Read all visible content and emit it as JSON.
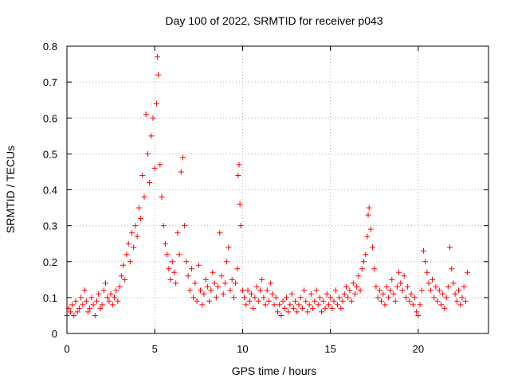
{
  "chart_data": {
    "type": "scatter",
    "title": "Day 100 of 2022, SRMTID for receiver p043",
    "xlabel": "GPS time / hours",
    "ylabel": "SRMTID / TECUs",
    "xlim": [
      0,
      24
    ],
    "ylim": [
      0,
      0.8
    ],
    "xticks": [
      0,
      5,
      10,
      15,
      20
    ],
    "xtick_labels": [
      "0",
      "5",
      "10",
      "15",
      "20"
    ],
    "yticks": [
      0,
      0.1,
      0.2,
      0.3,
      0.4,
      0.5,
      0.6,
      0.7,
      0.8
    ],
    "ytick_labels": [
      "0",
      "0.1",
      "0.2",
      "0.3",
      "0.4",
      "0.5",
      "0.6",
      "0.7",
      "0.8"
    ],
    "grid": true,
    "marker": "+",
    "series": [
      {
        "name": "SRMTID",
        "color": "#ff0000",
        "points": [
          [
            0.0,
            0.05
          ],
          [
            0.1,
            0.07
          ],
          [
            0.2,
            0.06
          ],
          [
            0.3,
            0.08
          ],
          [
            0.4,
            0.05
          ],
          [
            0.5,
            0.09
          ],
          [
            0.6,
            0.06
          ],
          [
            0.7,
            0.07
          ],
          [
            0.8,
            0.1
          ],
          [
            0.9,
            0.08
          ],
          [
            1.0,
            0.12
          ],
          [
            1.1,
            0.09
          ],
          [
            1.2,
            0.06
          ],
          [
            1.3,
            0.07
          ],
          [
            1.4,
            0.1
          ],
          [
            1.5,
            0.08
          ],
          [
            1.6,
            0.05
          ],
          [
            1.7,
            0.09
          ],
          [
            1.8,
            0.11
          ],
          [
            1.9,
            0.07
          ],
          [
            2.0,
            0.08
          ],
          [
            2.1,
            0.12
          ],
          [
            2.2,
            0.14
          ],
          [
            2.3,
            0.1
          ],
          [
            2.4,
            0.09
          ],
          [
            2.5,
            0.11
          ],
          [
            2.6,
            0.08
          ],
          [
            2.7,
            0.1
          ],
          [
            2.8,
            0.12
          ],
          [
            2.9,
            0.09
          ],
          [
            3.0,
            0.13
          ],
          [
            3.1,
            0.16
          ],
          [
            3.2,
            0.19
          ],
          [
            3.3,
            0.15
          ],
          [
            3.4,
            0.22
          ],
          [
            3.5,
            0.25
          ],
          [
            3.6,
            0.2
          ],
          [
            3.7,
            0.28
          ],
          [
            3.8,
            0.24
          ],
          [
            3.9,
            0.3
          ],
          [
            4.0,
            0.27
          ],
          [
            4.1,
            0.35
          ],
          [
            4.2,
            0.32
          ],
          [
            4.3,
            0.44
          ],
          [
            4.4,
            0.38
          ],
          [
            4.5,
            0.61
          ],
          [
            4.6,
            0.5
          ],
          [
            4.7,
            0.42
          ],
          [
            4.8,
            0.55
          ],
          [
            4.9,
            0.6
          ],
          [
            5.0,
            0.46
          ],
          [
            5.1,
            0.64
          ],
          [
            5.15,
            0.77
          ],
          [
            5.2,
            0.72
          ],
          [
            5.3,
            0.47
          ],
          [
            5.4,
            0.38
          ],
          [
            5.5,
            0.3
          ],
          [
            5.6,
            0.25
          ],
          [
            5.7,
            0.22
          ],
          [
            5.8,
            0.18
          ],
          [
            5.9,
            0.15
          ],
          [
            6.0,
            0.2
          ],
          [
            6.1,
            0.17
          ],
          [
            6.2,
            0.14
          ],
          [
            6.3,
            0.28
          ],
          [
            6.4,
            0.22
          ],
          [
            6.5,
            0.45
          ],
          [
            6.6,
            0.49
          ],
          [
            6.7,
            0.3
          ],
          [
            6.8,
            0.2
          ],
          [
            6.9,
            0.16
          ],
          [
            7.0,
            0.12
          ],
          [
            7.1,
            0.18
          ],
          [
            7.2,
            0.1
          ],
          [
            7.3,
            0.14
          ],
          [
            7.4,
            0.09
          ],
          [
            7.5,
            0.19
          ],
          [
            7.6,
            0.12
          ],
          [
            7.7,
            0.08
          ],
          [
            7.8,
            0.11
          ],
          [
            7.9,
            0.15
          ],
          [
            8.0,
            0.13
          ],
          [
            8.1,
            0.09
          ],
          [
            8.2,
            0.12
          ],
          [
            8.3,
            0.17
          ],
          [
            8.4,
            0.14
          ],
          [
            8.5,
            0.1
          ],
          [
            8.6,
            0.13
          ],
          [
            8.7,
            0.28
          ],
          [
            8.8,
            0.16
          ],
          [
            8.9,
            0.11
          ],
          [
            9.0,
            0.14
          ],
          [
            9.1,
            0.2
          ],
          [
            9.2,
            0.24
          ],
          [
            9.3,
            0.12
          ],
          [
            9.4,
            0.15
          ],
          [
            9.5,
            0.1
          ],
          [
            9.6,
            0.14
          ],
          [
            9.7,
            0.18
          ],
          [
            9.75,
            0.44
          ],
          [
            9.8,
            0.47
          ],
          [
            9.85,
            0.36
          ],
          [
            9.9,
            0.3
          ],
          [
            10.0,
            0.12
          ],
          [
            10.1,
            0.1
          ],
          [
            10.2,
            0.08
          ],
          [
            10.3,
            0.12
          ],
          [
            10.4,
            0.09
          ],
          [
            10.5,
            0.11
          ],
          [
            10.6,
            0.07
          ],
          [
            10.7,
            0.1
          ],
          [
            10.8,
            0.13
          ],
          [
            10.9,
            0.09
          ],
          [
            11.0,
            0.12
          ],
          [
            11.1,
            0.15
          ],
          [
            11.2,
            0.1
          ],
          [
            11.3,
            0.08
          ],
          [
            11.4,
            0.12
          ],
          [
            11.5,
            0.09
          ],
          [
            11.6,
            0.14
          ],
          [
            11.7,
            0.11
          ],
          [
            11.8,
            0.08
          ],
          [
            11.9,
            0.1
          ],
          [
            12.0,
            0.06
          ],
          [
            12.1,
            0.08
          ],
          [
            12.2,
            0.05
          ],
          [
            12.3,
            0.09
          ],
          [
            12.4,
            0.07
          ],
          [
            12.5,
            0.1
          ],
          [
            12.6,
            0.06
          ],
          [
            12.7,
            0.08
          ],
          [
            12.8,
            0.11
          ],
          [
            12.9,
            0.07
          ],
          [
            13.0,
            0.09
          ],
          [
            13.1,
            0.06
          ],
          [
            13.2,
            0.08
          ],
          [
            13.3,
            0.1
          ],
          [
            13.4,
            0.07
          ],
          [
            13.5,
            0.12
          ],
          [
            13.6,
            0.09
          ],
          [
            13.7,
            0.06
          ],
          [
            13.8,
            0.08
          ],
          [
            13.9,
            0.11
          ],
          [
            14.0,
            0.07
          ],
          [
            14.1,
            0.09
          ],
          [
            14.2,
            0.12
          ],
          [
            14.3,
            0.08
          ],
          [
            14.4,
            0.1
          ],
          [
            14.5,
            0.06
          ],
          [
            14.6,
            0.09
          ],
          [
            14.7,
            0.07
          ],
          [
            14.8,
            0.11
          ],
          [
            14.9,
            0.08
          ],
          [
            15.0,
            0.1
          ],
          [
            15.1,
            0.07
          ],
          [
            15.2,
            0.09
          ],
          [
            15.3,
            0.12
          ],
          [
            15.4,
            0.08
          ],
          [
            15.5,
            0.1
          ],
          [
            15.6,
            0.07
          ],
          [
            15.7,
            0.09
          ],
          [
            15.8,
            0.11
          ],
          [
            15.9,
            0.13
          ],
          [
            16.0,
            0.1
          ],
          [
            16.1,
            0.12
          ],
          [
            16.2,
            0.09
          ],
          [
            16.3,
            0.14
          ],
          [
            16.4,
            0.11
          ],
          [
            16.5,
            0.13
          ],
          [
            16.6,
            0.16
          ],
          [
            16.7,
            0.12
          ],
          [
            16.8,
            0.18
          ],
          [
            16.9,
            0.2
          ],
          [
            17.0,
            0.22
          ],
          [
            17.1,
            0.27
          ],
          [
            17.15,
            0.33
          ],
          [
            17.2,
            0.35
          ],
          [
            17.3,
            0.29
          ],
          [
            17.4,
            0.24
          ],
          [
            17.5,
            0.18
          ],
          [
            17.6,
            0.13
          ],
          [
            17.7,
            0.1
          ],
          [
            17.8,
            0.12
          ],
          [
            17.9,
            0.09
          ],
          [
            18.0,
            0.11
          ],
          [
            18.1,
            0.08
          ],
          [
            18.2,
            0.13
          ],
          [
            18.3,
            0.1
          ],
          [
            18.4,
            0.12
          ],
          [
            18.5,
            0.15
          ],
          [
            18.6,
            0.11
          ],
          [
            18.7,
            0.09
          ],
          [
            18.8,
            0.13
          ],
          [
            18.9,
            0.17
          ],
          [
            19.0,
            0.14
          ],
          [
            19.1,
            0.12
          ],
          [
            19.2,
            0.16
          ],
          [
            19.3,
            0.1
          ],
          [
            19.4,
            0.13
          ],
          [
            19.5,
            0.09
          ],
          [
            19.6,
            0.11
          ],
          [
            19.7,
            0.08
          ],
          [
            19.8,
            0.1
          ],
          [
            19.9,
            0.06
          ],
          [
            20.0,
            0.05
          ],
          [
            20.1,
            0.08
          ],
          [
            20.2,
            0.12
          ],
          [
            20.3,
            0.23
          ],
          [
            20.4,
            0.2
          ],
          [
            20.5,
            0.17
          ],
          [
            20.6,
            0.14
          ],
          [
            20.7,
            0.12
          ],
          [
            20.8,
            0.15
          ],
          [
            20.9,
            0.1
          ],
          [
            21.0,
            0.13
          ],
          [
            21.1,
            0.09
          ],
          [
            21.2,
            0.12
          ],
          [
            21.3,
            0.08
          ],
          [
            21.4,
            0.11
          ],
          [
            21.5,
            0.07
          ],
          [
            21.6,
            0.1
          ],
          [
            21.7,
            0.13
          ],
          [
            21.8,
            0.24
          ],
          [
            21.9,
            0.18
          ],
          [
            22.0,
            0.14
          ],
          [
            22.1,
            0.11
          ],
          [
            22.2,
            0.09
          ],
          [
            22.3,
            0.12
          ],
          [
            22.4,
            0.08
          ],
          [
            22.5,
            0.1
          ],
          [
            22.6,
            0.13
          ],
          [
            22.7,
            0.09
          ],
          [
            22.8,
            0.17
          ]
        ]
      }
    ]
  }
}
